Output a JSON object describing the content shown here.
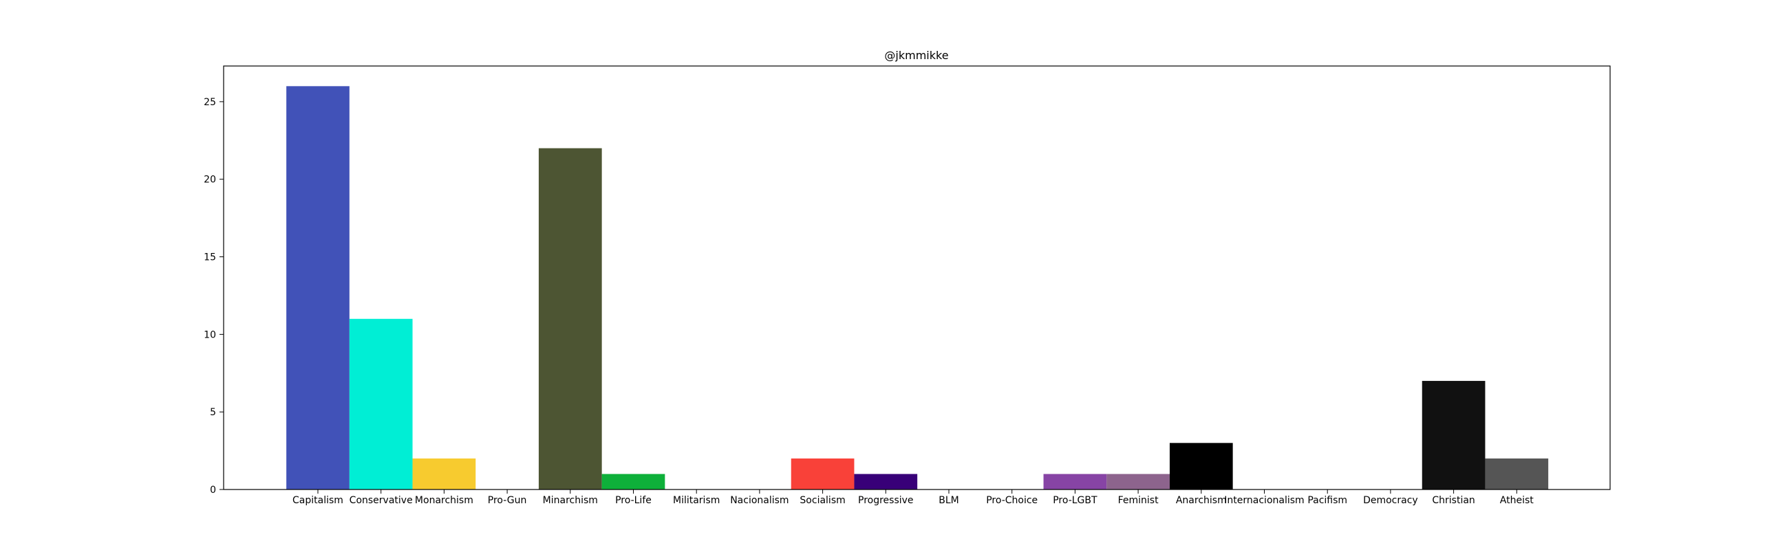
{
  "chart_data": {
    "type": "bar",
    "title": "@jkmmikke",
    "xlabel": "",
    "ylabel": "",
    "ylim": [
      0,
      27.3
    ],
    "yticks": [
      0,
      5,
      10,
      15,
      20,
      25
    ],
    "grid": false,
    "legend": "none",
    "categories": [
      "Capitalism",
      "Conservative",
      "Monarchism",
      "Pro-Gun",
      "Minarchism",
      "Pro-Life",
      "Militarism",
      "Nacionalism",
      "Socialism",
      "Progressive",
      "BLM",
      "Pro-Choice",
      "Pro-LGBT",
      "Feminist",
      "Anarchism",
      "Internacionalism",
      "Pacifism",
      "Democracy",
      "Christian",
      "Atheist"
    ],
    "values": [
      26,
      11,
      2,
      0,
      22,
      1,
      0,
      0,
      2,
      1,
      0,
      0,
      1,
      1,
      3,
      0,
      0,
      0,
      7,
      2
    ],
    "colors": [
      "#4152b8",
      "#00eed5",
      "#f7cb2f",
      "#f7cb2f",
      "#4d5533",
      "#0eb03a",
      "#4d5533",
      "#4d5533",
      "#f94139",
      "#380078",
      "#380078",
      "#380078",
      "#8744a5",
      "#8d648d",
      "#000000",
      "#000000",
      "#000000",
      "#000000",
      "#111111",
      "#555555"
    ]
  }
}
